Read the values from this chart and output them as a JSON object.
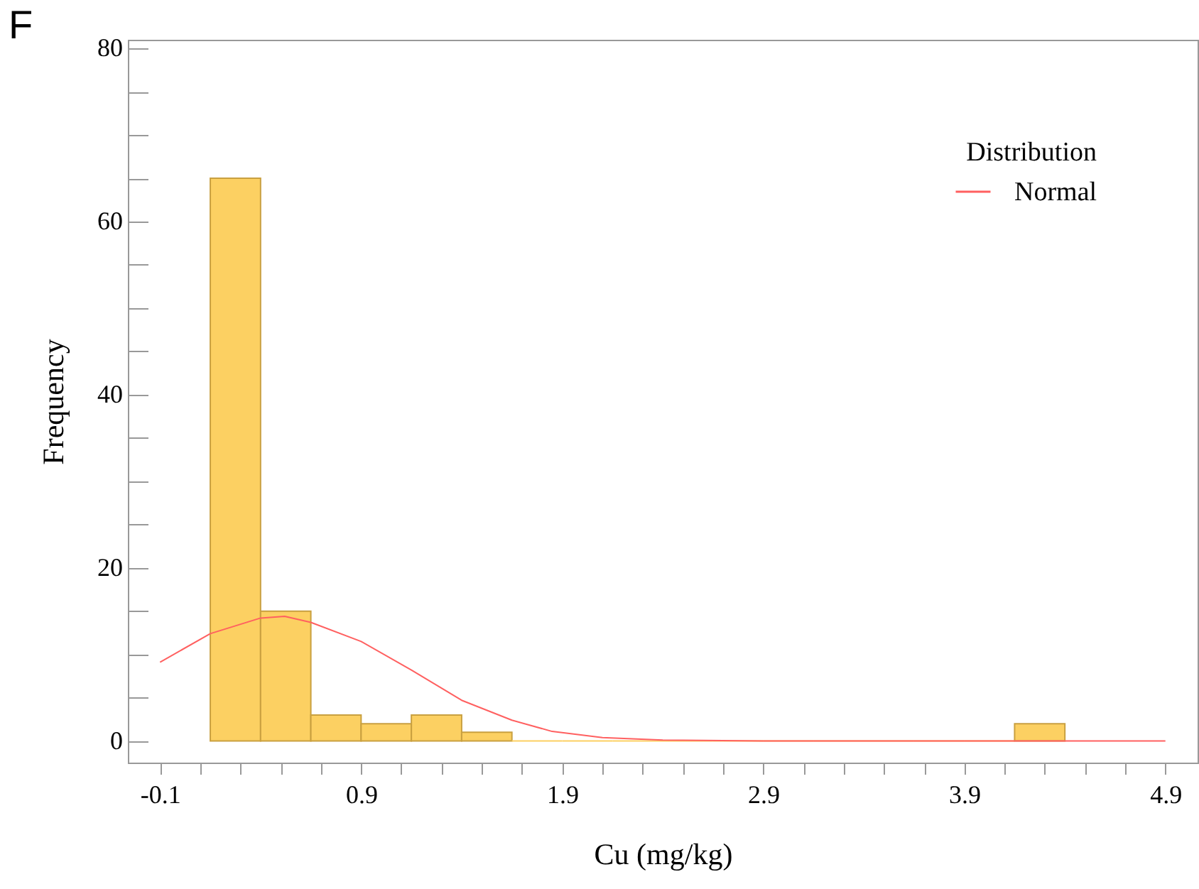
{
  "chart_data": {
    "type": "histogram",
    "xlabel": "Cu (mg/kg)",
    "ylabel": "Frequency",
    "legend_title": "Distribution",
    "legend": "top right",
    "annotations": [
      "F"
    ],
    "bins": [
      0.15,
      0.4,
      0.65,
      0.9,
      1.15,
      1.4,
      1.65,
      1.9,
      2.15,
      2.4,
      2.65,
      2.9,
      3.15,
      3.4,
      3.65,
      3.9,
      4.15,
      4.4
    ],
    "values": [
      65,
      15,
      3,
      2,
      3,
      1,
      0,
      0,
      0,
      0,
      0,
      0,
      0,
      0,
      0,
      0,
      2
    ],
    "color": "#fcd062",
    "series": [
      {
        "name": "Normal",
        "type": "line",
        "color": "#ff6060",
        "x": [
          -0.1,
          0.15,
          0.4,
          0.52,
          0.65,
          0.9,
          1.15,
          1.4,
          1.65,
          1.85,
          2.1,
          2.4,
          2.9,
          3.9,
          4.9
        ],
        "values": [
          9.1,
          12.4,
          14.2,
          14.4,
          13.7,
          11.5,
          8.2,
          4.7,
          2.4,
          1.1,
          0.4,
          0.1,
          0,
          0,
          0
        ]
      }
    ],
    "xlim": [
      -0.26,
      5.06
    ],
    "ylim": [
      -2.5,
      81
    ],
    "xticks": [
      -0.1,
      {
        "value": 0.1,
        "label": null
      },
      {
        "value": 0.3,
        "label": null
      },
      {
        "value": 0.5,
        "label": null
      },
      {
        "value": 0.7,
        "label": null
      },
      0.9,
      {
        "value": 1.1,
        "label": null
      },
      {
        "value": 1.3,
        "label": null
      },
      {
        "value": 1.5,
        "label": null
      },
      {
        "value": 1.7,
        "label": null
      },
      1.9,
      {
        "value": 2.1,
        "label": null
      },
      {
        "value": 2.3,
        "label": null
      },
      {
        "value": 2.5,
        "label": null
      },
      {
        "value": 2.7,
        "label": null
      },
      2.9,
      {
        "value": 3.1,
        "label": null
      },
      {
        "value": 3.3,
        "label": null
      },
      {
        "value": 3.5,
        "label": null
      },
      {
        "value": 3.7,
        "label": null
      },
      3.9,
      {
        "value": 4.1,
        "label": null
      },
      {
        "value": 4.3,
        "label": null
      },
      {
        "value": 4.5,
        "label": null
      },
      {
        "value": 4.7,
        "label": null
      },
      4.9
    ],
    "yticks": [
      0,
      {
        "value": 5,
        "label": null
      },
      {
        "value": 10,
        "label": null
      },
      {
        "value": 15,
        "label": null
      },
      20,
      {
        "value": 25,
        "label": null
      },
      {
        "value": 30,
        "label": null
      },
      {
        "value": 35,
        "label": null
      },
      40,
      {
        "value": 45,
        "label": null
      },
      {
        "value": 50,
        "label": null
      },
      {
        "value": 55,
        "label": null
      },
      60,
      {
        "value": 65,
        "label": null
      },
      {
        "value": 70,
        "label": null
      },
      {
        "value": 75,
        "label": null
      },
      80
    ],
    "grid": false,
    "marker": "none",
    "line_style": "solid"
  }
}
